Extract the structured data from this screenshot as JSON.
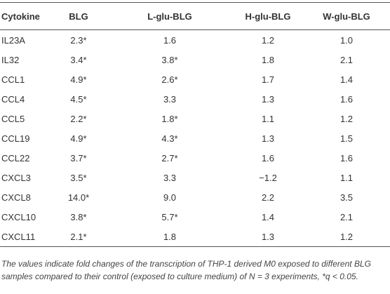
{
  "table": {
    "header": [
      "Cytokine",
      "BLG",
      "L-glu-BLG",
      "H-glu-BLG",
      "W-glu-BLG"
    ],
    "rows": [
      [
        "IL23A",
        "2.3*",
        "1.6",
        "1.2",
        "1.0"
      ],
      [
        "IL32",
        "3.4*",
        "3.8*",
        "1.8",
        "2.1"
      ],
      [
        "CCL1",
        "4.9*",
        "2.6*",
        "1.7",
        "1.4"
      ],
      [
        "CCL4",
        "4.5*",
        "3.3",
        "1.3",
        "1.6"
      ],
      [
        "CCL5",
        "2.2*",
        "1.8*",
        "1.1",
        "1.2"
      ],
      [
        "CCL19",
        "4.9*",
        "4.3*",
        "1.3",
        "1.5"
      ],
      [
        "CCL22",
        "3.7*",
        "2.7*",
        "1.6",
        "1.6"
      ],
      [
        "CXCL3",
        "3.5*",
        "3.3",
        "−1.2",
        "1.1"
      ],
      [
        "CXCL8",
        "14.0*",
        "9.0",
        "2.2",
        "3.5"
      ],
      [
        "CXCL10",
        "3.8*",
        "5.7*",
        "1.4",
        "2.1"
      ],
      [
        "CXCL11",
        "2.1*",
        "1.8",
        "1.3",
        "1.2"
      ]
    ],
    "footnote": "The values indicate fold changes of the transcription of THP-1 derived M0 exposed to different BLG samples compared to their control (exposed to culture medium) of N = 3 experiments, *q < 0.05."
  }
}
